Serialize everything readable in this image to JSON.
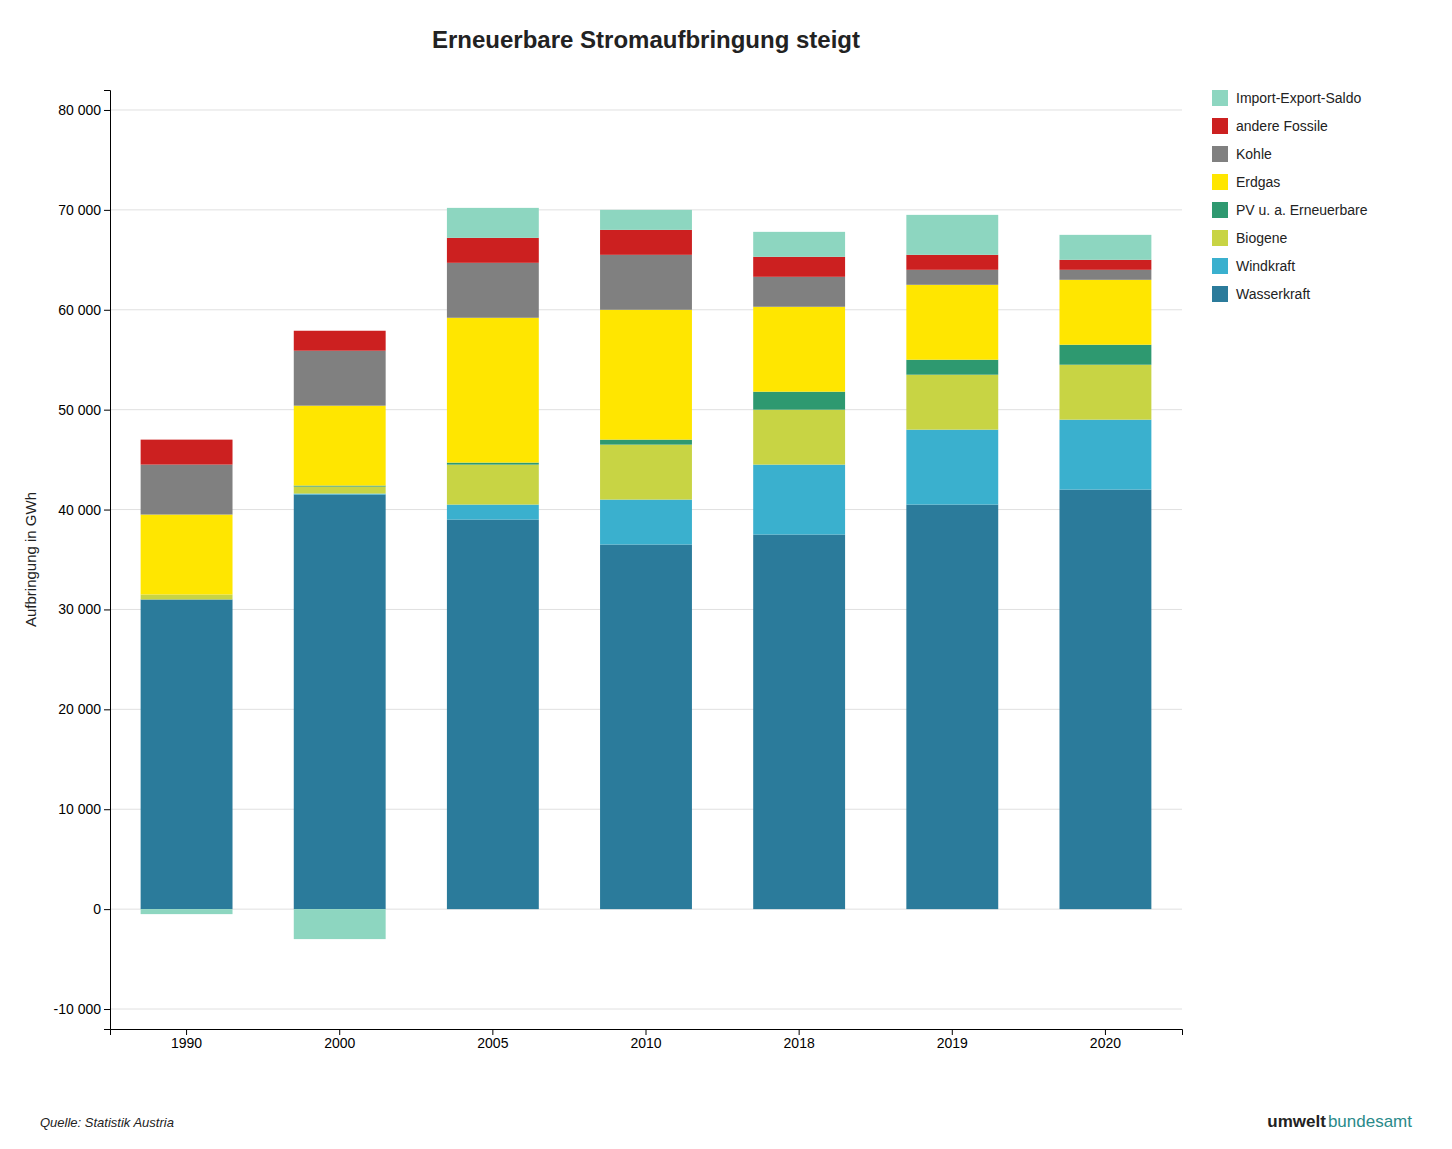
{
  "chart_data": {
    "type": "bar",
    "title": "Erneuerbare Stromaufbringung steigt",
    "ylabel": "Aufbringung in GWh",
    "categories": [
      "1990",
      "2000",
      "2005",
      "2010",
      "2018",
      "2019",
      "2020"
    ],
    "series": [
      {
        "name": "Wasserkraft",
        "color": "#2b7b9b",
        "values": [
          31000,
          41500,
          39000,
          36500,
          37500,
          40500,
          42000
        ]
      },
      {
        "name": "Windkraft",
        "color": "#3ab0ce",
        "values": [
          0,
          100,
          1500,
          4500,
          7000,
          7500,
          7000
        ]
      },
      {
        "name": "Biogene",
        "color": "#c8d444",
        "values": [
          500,
          700,
          4000,
          5500,
          5500,
          5500,
          5500
        ]
      },
      {
        "name": "PV u. a. Erneuerbare",
        "color": "#2e9970",
        "values": [
          0,
          100,
          200,
          500,
          1800,
          1500,
          2000
        ]
      },
      {
        "name": "Erdgas",
        "color": "#ffe600",
        "values": [
          8000,
          8000,
          14500,
          13000,
          8500,
          7500,
          6500
        ]
      },
      {
        "name": "Kohle",
        "color": "#808080",
        "values": [
          5000,
          5500,
          5500,
          5500,
          3000,
          1500,
          1000
        ]
      },
      {
        "name": "andere Fossile",
        "color": "#cc2020",
        "values": [
          2500,
          2000,
          2500,
          2500,
          2000,
          1500,
          1000
        ]
      },
      {
        "name": "Import-Export-Saldo",
        "color": "#8dd6c0",
        "values": [
          -500,
          -3000,
          3000,
          2000,
          2500,
          4000,
          2500
        ]
      }
    ],
    "stacked": true,
    "ylim": [
      -12000,
      82000
    ],
    "yticks": [
      {
        "value": -10000,
        "label": "-10 000"
      },
      0,
      {
        "value": 10000,
        "label": "10 000"
      },
      {
        "value": 20000,
        "label": "20 000"
      },
      {
        "value": 30000,
        "label": "30 000"
      },
      {
        "value": 40000,
        "label": "40 000"
      },
      {
        "value": 50000,
        "label": "50 000"
      },
      {
        "value": 60000,
        "label": "60 000"
      },
      {
        "value": 70000,
        "label": "70 000"
      },
      {
        "value": 80000,
        "label": "80 000"
      }
    ],
    "grid": true,
    "legend": "upper right",
    "annotations": [
      {
        "text": "Quelle: Statistik Austria"
      },
      {
        "text": "umwelt",
        "color": "#222222"
      },
      {
        "text": "bundesamt",
        "color": "#2a8a8a"
      }
    ]
  }
}
